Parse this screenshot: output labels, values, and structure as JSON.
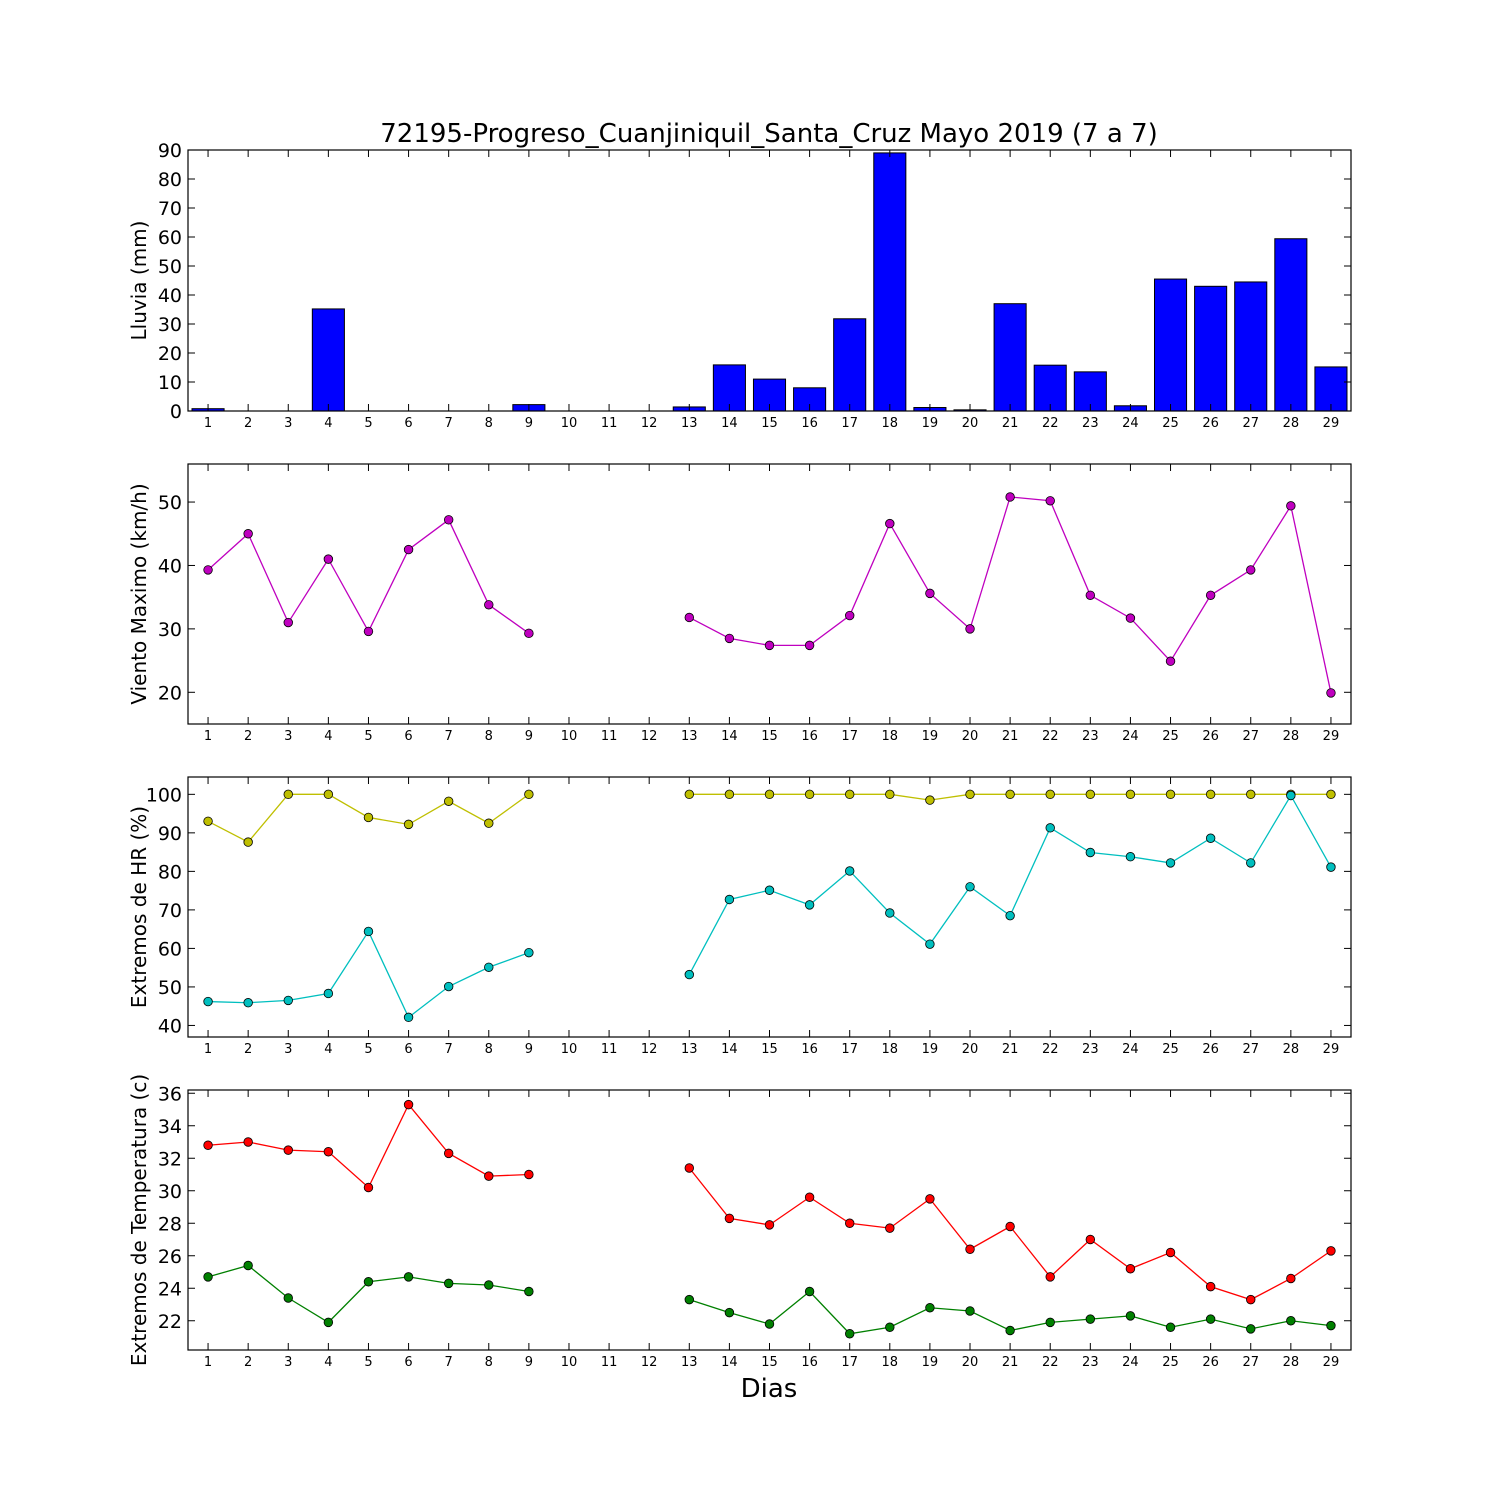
{
  "figure": {
    "title": "72195-Progreso_Cuanjiniquil_Santa_Cruz Mayo 2019  (7 a 7)",
    "xlabel": "Dias"
  },
  "chart_data": [
    {
      "type": "bar",
      "ylabel": "Lluvia (mm)",
      "ylim": [
        0,
        90
      ],
      "yticks": [
        0,
        10,
        20,
        30,
        40,
        50,
        60,
        70,
        80,
        90
      ],
      "xlim": [
        0.5,
        29.5
      ],
      "x_ticks": [
        1,
        2,
        3,
        4,
        5,
        6,
        7,
        8,
        9,
        10,
        11,
        12,
        13,
        14,
        15,
        16,
        17,
        18,
        19,
        20,
        21,
        22,
        23,
        24,
        25,
        26,
        27,
        28,
        29
      ],
      "grid": false,
      "series": [
        {
          "color": "#0000ff",
          "x": [
            1,
            2,
            3,
            4,
            5,
            6,
            7,
            8,
            9,
            10,
            11,
            12,
            13,
            14,
            15,
            16,
            17,
            18,
            19,
            20,
            21,
            22,
            23,
            24,
            25,
            26,
            27,
            28,
            29
          ],
          "values": [
            0.8,
            0,
            0,
            35.2,
            0,
            0,
            0,
            0,
            2.2,
            0,
            0,
            0,
            1.4,
            15.9,
            11,
            8,
            31.8,
            89,
            1.2,
            0.4,
            37,
            15.8,
            13.5,
            1.8,
            45.5,
            43,
            44.5,
            59.4,
            15.2
          ]
        }
      ]
    },
    {
      "type": "line",
      "ylabel": "Viento Maximo (km/h)",
      "ylim": [
        15,
        56
      ],
      "yticks": [
        20,
        30,
        40,
        50
      ],
      "xlim": [
        0.5,
        29.5
      ],
      "x_ticks": [
        1,
        2,
        3,
        4,
        5,
        6,
        7,
        8,
        9,
        10,
        11,
        12,
        13,
        14,
        15,
        16,
        17,
        18,
        19,
        20,
        21,
        22,
        23,
        24,
        25,
        26,
        27,
        28,
        29
      ],
      "grid": false,
      "series": [
        {
          "color": "#bf00bf",
          "x": [
            1,
            2,
            3,
            4,
            5,
            6,
            7,
            8,
            9,
            10,
            11,
            12,
            13,
            14,
            15,
            16,
            17,
            18,
            19,
            20,
            21,
            22,
            23,
            24,
            25,
            26,
            27,
            28,
            29
          ],
          "values": [
            39.3,
            45,
            31,
            41,
            29.6,
            42.5,
            47.2,
            33.8,
            29.3,
            null,
            null,
            null,
            31.8,
            28.5,
            27.4,
            27.4,
            32.1,
            46.6,
            35.6,
            30,
            50.8,
            50.2,
            35.3,
            31.7,
            24.9,
            35.3,
            39.3,
            49.4,
            19.9
          ]
        }
      ]
    },
    {
      "type": "line",
      "ylabel": "Extremos de HR (%)",
      "ylim": [
        37,
        104.5
      ],
      "yticks": [
        40,
        50,
        60,
        70,
        80,
        90,
        100
      ],
      "xlim": [
        0.5,
        29.5
      ],
      "x_ticks": [
        1,
        2,
        3,
        4,
        5,
        6,
        7,
        8,
        9,
        10,
        11,
        12,
        13,
        14,
        15,
        16,
        17,
        18,
        19,
        20,
        21,
        22,
        23,
        24,
        25,
        26,
        27,
        28,
        29
      ],
      "grid": false,
      "series": [
        {
          "color": "#bfbf00",
          "x": [
            1,
            2,
            3,
            4,
            5,
            6,
            7,
            8,
            9,
            10,
            11,
            12,
            13,
            14,
            15,
            16,
            17,
            18,
            19,
            20,
            21,
            22,
            23,
            24,
            25,
            26,
            27,
            28,
            29
          ],
          "values": [
            93,
            87.6,
            100,
            100,
            94,
            92.2,
            98.2,
            92.5,
            100,
            null,
            null,
            null,
            100,
            100,
            100,
            100,
            100,
            100,
            98.5,
            100,
            100,
            100,
            100,
            100,
            100,
            100,
            100,
            100,
            100
          ]
        },
        {
          "color": "#00bfbf",
          "x": [
            1,
            2,
            3,
            4,
            5,
            6,
            7,
            8,
            9,
            10,
            11,
            12,
            13,
            14,
            15,
            16,
            17,
            18,
            19,
            20,
            21,
            22,
            23,
            24,
            25,
            26,
            27,
            28,
            29
          ],
          "values": [
            46.2,
            45.9,
            46.5,
            48.3,
            64.4,
            42.1,
            50.1,
            55.1,
            58.9,
            null,
            null,
            null,
            53.2,
            72.7,
            75.1,
            71.3,
            80.1,
            69.2,
            61.1,
            76,
            68.5,
            91.3,
            84.9,
            83.8,
            82.2,
            88.6,
            82.2,
            99.7,
            81.1
          ]
        }
      ]
    },
    {
      "type": "line",
      "ylabel": "Extremos de Temperatura (c)",
      "ylim": [
        20.2,
        36.2
      ],
      "yticks": [
        22,
        24,
        26,
        28,
        30,
        32,
        34,
        36
      ],
      "xlim": [
        0.5,
        29.5
      ],
      "x_ticks": [
        1,
        2,
        3,
        4,
        5,
        6,
        7,
        8,
        9,
        10,
        11,
        12,
        13,
        14,
        15,
        16,
        17,
        18,
        19,
        20,
        21,
        22,
        23,
        24,
        25,
        26,
        27,
        28,
        29
      ],
      "grid": false,
      "series": [
        {
          "color": "#ff0000",
          "x": [
            1,
            2,
            3,
            4,
            5,
            6,
            7,
            8,
            9,
            10,
            11,
            12,
            13,
            14,
            15,
            16,
            17,
            18,
            19,
            20,
            21,
            22,
            23,
            24,
            25,
            26,
            27,
            28,
            29
          ],
          "values": [
            32.8,
            33,
            32.5,
            32.4,
            30.2,
            35.3,
            32.3,
            30.9,
            31,
            null,
            null,
            null,
            31.4,
            28.3,
            27.9,
            29.6,
            28,
            27.7,
            29.5,
            26.4,
            27.8,
            24.7,
            27,
            25.2,
            26.2,
            24.1,
            23.3,
            24.6,
            26.3
          ]
        },
        {
          "color": "#008000",
          "x": [
            1,
            2,
            3,
            4,
            5,
            6,
            7,
            8,
            9,
            10,
            11,
            12,
            13,
            14,
            15,
            16,
            17,
            18,
            19,
            20,
            21,
            22,
            23,
            24,
            25,
            26,
            27,
            28,
            29
          ],
          "values": [
            24.7,
            25.4,
            23.4,
            21.9,
            24.4,
            24.7,
            24.3,
            24.2,
            23.8,
            null,
            null,
            null,
            23.3,
            22.5,
            21.8,
            23.8,
            21.2,
            21.6,
            22.8,
            22.6,
            21.4,
            21.9,
            22.1,
            22.3,
            21.6,
            22.1,
            21.5,
            22,
            21.7
          ]
        }
      ]
    }
  ]
}
